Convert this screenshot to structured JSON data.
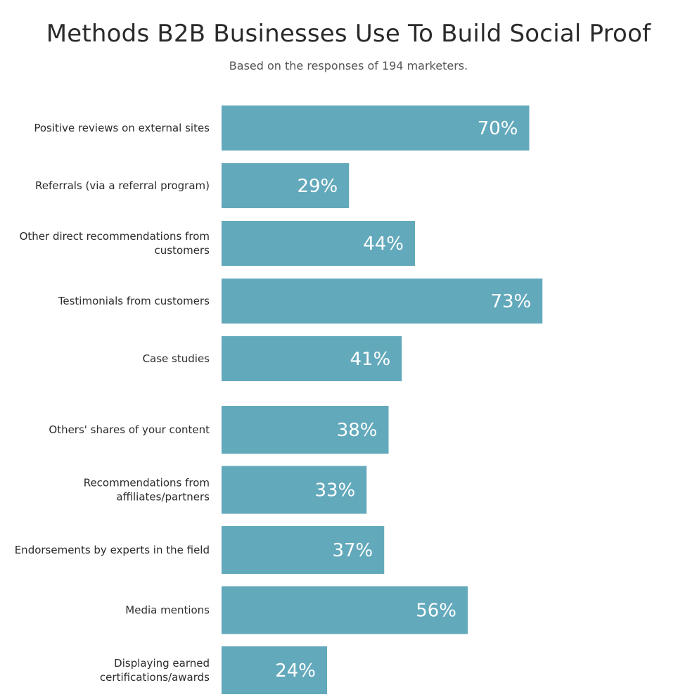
{
  "chart_data": {
    "type": "bar",
    "orientation": "horizontal",
    "title": "Methods B2B Businesses Use To Build Social Proof",
    "subtitle": "Based on the responses of 194 marketers.",
    "categories": [
      "Positive reviews on external sites",
      "Referrals (via a referral program)",
      "Other direct recommendations from customers",
      "Testimonials from customers",
      "Case studies",
      "Others' shares of your content",
      "Recommendations from affiliates/partners",
      "Endorsements by experts in the field",
      "Media mentions",
      "Displaying earned certifications/awards"
    ],
    "values": [
      70,
      29,
      44,
      73,
      41,
      38,
      33,
      37,
      56,
      24
    ],
    "value_labels": [
      "70%",
      "29%",
      "44%",
      "73%",
      "41%",
      "38%",
      "33%",
      "37%",
      "56%",
      "24%"
    ],
    "unit": "%",
    "xlim": [
      0,
      100
    ],
    "bar_color": "#63a9bc",
    "grid": false,
    "legend": "none"
  }
}
